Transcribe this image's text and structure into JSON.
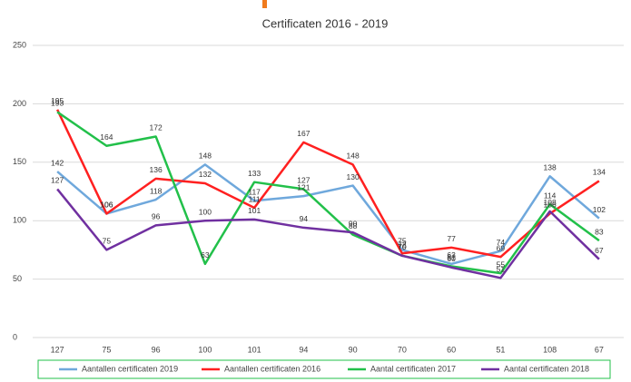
{
  "chart_data": {
    "type": "line",
    "title": "Certificaten 2016 - 2019",
    "categories": [
      "127",
      "75",
      "96",
      "100",
      "101",
      "94",
      "90",
      "70",
      "60",
      "51",
      "108",
      "67"
    ],
    "series": [
      {
        "name": "Aantallen certificaten 2019",
        "color": "#6fa8dc",
        "values": [
          142,
          106,
          118,
          148,
          117,
          121,
          130,
          75,
          63,
          74,
          138,
          102
        ]
      },
      {
        "name": "Aantallen certificaten 2016",
        "color": "#ff2020",
        "values": [
          195,
          106,
          136,
          132,
          111,
          167,
          148,
          72,
          77,
          69,
          106,
          134
        ]
      },
      {
        "name": "Aantal certificaten 2017",
        "color": "#22c04a",
        "values": [
          193,
          164,
          172,
          63,
          133,
          127,
          88,
          70,
          61,
          55,
          114,
          83
        ]
      },
      {
        "name": "Aantal certificaten 2018",
        "color": "#7030a0",
        "values": [
          127,
          75,
          96,
          100,
          101,
          94,
          90,
          70,
          60,
          51,
          108,
          67
        ]
      }
    ],
    "ylim": [
      0,
      250
    ],
    "yticks": [
      0,
      50,
      100,
      150,
      200,
      250
    ],
    "grid": true,
    "legend": "bottom"
  }
}
